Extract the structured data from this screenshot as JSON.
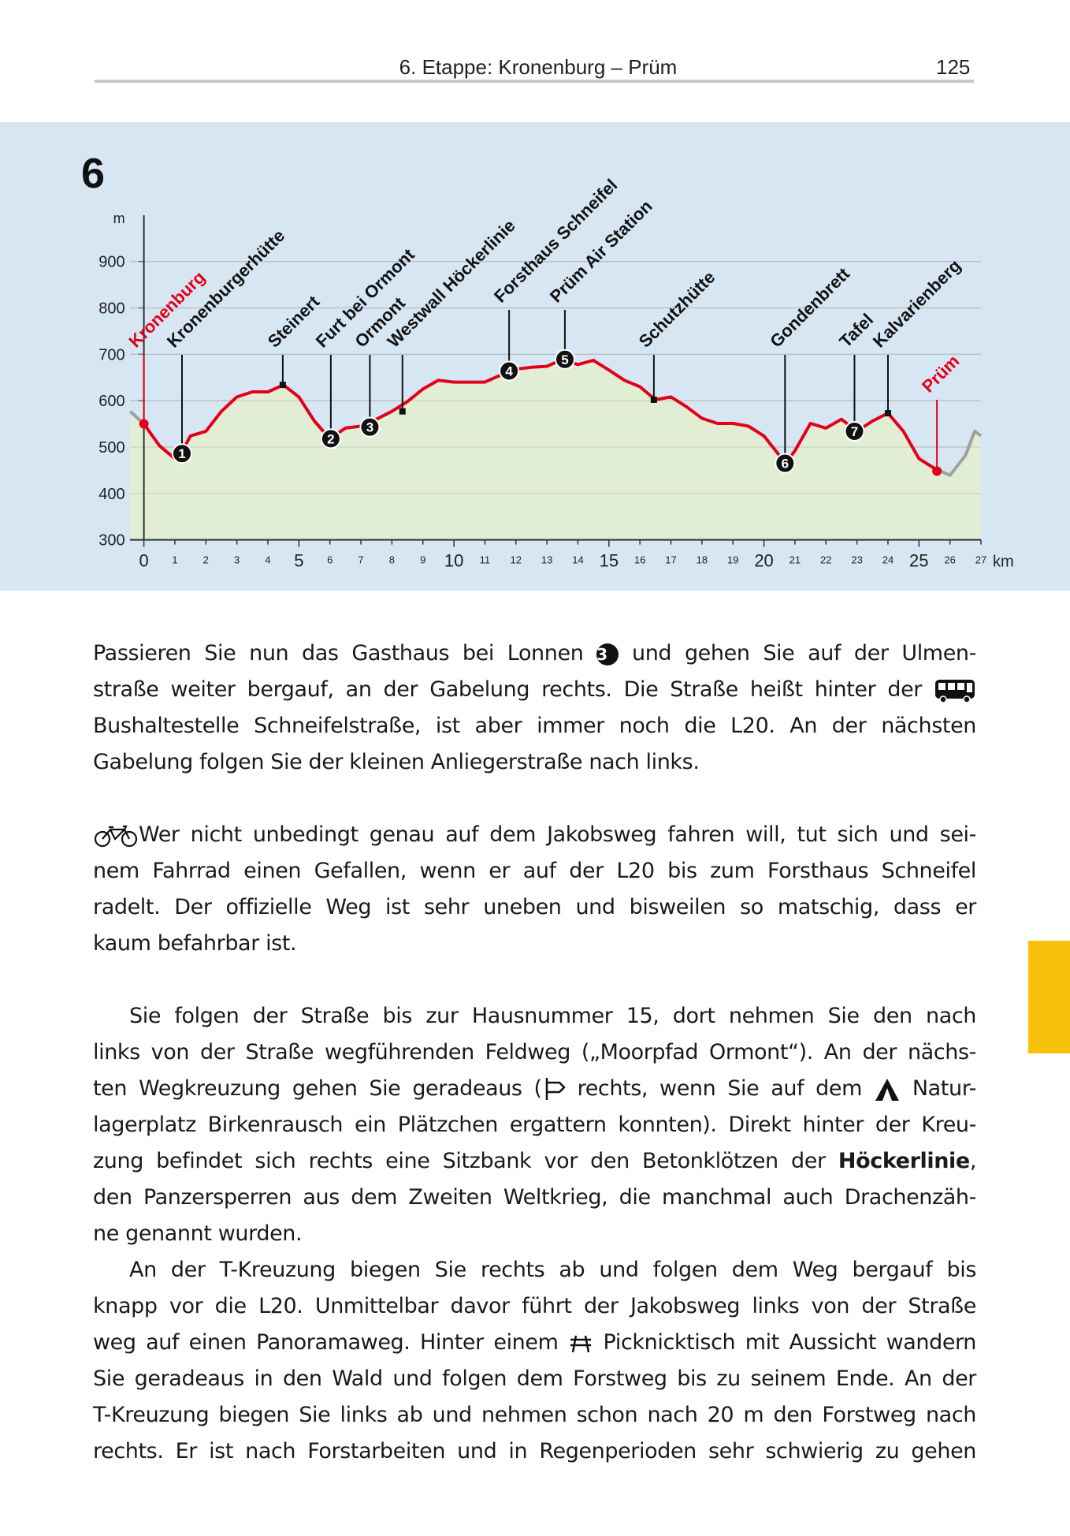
{
  "header": {
    "title": "6. Etappe: Kronenburg – Prüm",
    "page": "125"
  },
  "chart_data": {
    "type": "line",
    "title": "6",
    "y_label": "m",
    "x_label": "km",
    "xlim": [
      0,
      27
    ],
    "ylim": [
      300,
      900
    ],
    "xticks": [
      0,
      1,
      2,
      3,
      4,
      5,
      6,
      7,
      8,
      9,
      10,
      11,
      12,
      13,
      14,
      15,
      16,
      17,
      18,
      19,
      20,
      21,
      22,
      23,
      24,
      25,
      26,
      27
    ],
    "yticks": [
      300,
      400,
      500,
      600,
      700,
      800,
      900
    ],
    "grid": true,
    "fill": "#e2eed3",
    "x": [
      -0.44,
      0,
      0.5,
      1,
      1.2,
      1.5,
      2,
      2.5,
      3,
      3.5,
      4,
      4.5,
      5,
      5.5,
      6,
      6.5,
      7,
      7.2,
      7.5,
      8,
      8.5,
      9,
      9.5,
      10,
      11,
      11.5,
      12,
      12.5,
      13,
      13.5,
      14,
      14.5,
      15,
      15.5,
      16,
      16.5,
      17,
      17.5,
      18,
      18.5,
      19,
      19.5,
      20,
      20.5,
      20.7,
      21,
      21.5,
      22,
      22.5,
      23,
      23.5,
      24,
      24.5,
      25,
      25.5,
      25.7,
      26,
      26.5,
      26.8,
      27
    ],
    "series": [
      {
        "color": "#e2001a",
        "values": [
          null,
          550,
          503,
          475,
          486,
          524,
          534,
          577,
          608,
          619,
          619,
          634,
          608,
          556,
          518,
          541,
          545,
          543,
          560,
          577,
          598,
          625,
          644,
          640,
          640,
          655,
          668,
          672,
          674,
          689,
          678,
          687,
          666,
          644,
          630,
          602,
          608,
          587,
          562,
          551,
          551,
          545,
          524,
          482,
          465,
          492,
          551,
          541,
          560,
          534,
          556,
          573,
          534,
          475,
          454,
          448,
          null,
          null,
          null,
          null
        ]
      },
      {
        "color": "#a0a0a0",
        "values": [
          577,
          550,
          null,
          null,
          null,
          null,
          null,
          null,
          null,
          null,
          null,
          null,
          null,
          null,
          null,
          null,
          null,
          null,
          null,
          null,
          null,
          null,
          null,
          null,
          null,
          null,
          null,
          null,
          null,
          null,
          null,
          null,
          null,
          null,
          null,
          null,
          null,
          null,
          null,
          null,
          null,
          null,
          null,
          null,
          null,
          null,
          null,
          null,
          null,
          null,
          null,
          null,
          null,
          null,
          null,
          448,
          439,
          482,
          534,
          524
        ]
      }
    ],
    "waypoints": [
      {
        "label": "Kronenburg",
        "km": 0,
        "value": 550,
        "symbol": "dot",
        "color": "#e2001a"
      },
      {
        "label": "Kronenburgerhütte",
        "km": 1.23,
        "value": 486,
        "symbol": "circle",
        "marker": "1",
        "color": "#111111"
      },
      {
        "label": "Steinert",
        "km": 4.48,
        "value": 634,
        "symbol": "square",
        "color": "#111111"
      },
      {
        "label": "Furt bei Ormont",
        "km": 6.03,
        "value": 518,
        "symbol": "circle",
        "marker": "2",
        "color": "#111111"
      },
      {
        "label": "Ormont",
        "km": 7.29,
        "value": 543,
        "symbol": "circle",
        "marker": "3",
        "color": "#111111"
      },
      {
        "label": "Westwall Höckerlinie",
        "km": 8.34,
        "value": 577,
        "symbol": "square",
        "color": "#111111"
      },
      {
        "label": "Forsthaus Schneifel",
        "km": 11.78,
        "value": 664,
        "symbol": "circle",
        "marker": "4",
        "color": "#111111"
      },
      {
        "label": "Prüm Air Station",
        "km": 13.58,
        "value": 689,
        "symbol": "circle",
        "marker": "5",
        "color": "#111111"
      },
      {
        "label": "Schutzhütte",
        "km": 16.45,
        "value": 602,
        "symbol": "square",
        "color": "#111111"
      },
      {
        "label": "Gondenbrett",
        "km": 20.68,
        "value": 465,
        "symbol": "circle",
        "marker": "6",
        "color": "#111111"
      },
      {
        "label": "Tafel",
        "km": 22.92,
        "value": 534,
        "symbol": "circle",
        "marker": "7",
        "color": "#111111"
      },
      {
        "label": "Kalvarienberg",
        "km": 24.0,
        "value": 573,
        "symbol": "square",
        "color": "#111111"
      },
      {
        "label": "Prüm",
        "km": 25.58,
        "value": 448,
        "symbol": "dot",
        "color": "#e2001a"
      }
    ]
  },
  "text": {
    "paragraphs": [
      {
        "lines": [
          [
            "Passieren Sie nun das Gasthaus bei Lonnen ",
            "3",
            " und gehen Sie auf der Ulmen-"
          ],
          [
            "straße weiter bergauf, an der Gabelung rechts. Die Straße heißt hinter der "
          ],
          [
            "Bushaltestelle Schneifelstraße, ist aber immer noch die L20. An der nächsten"
          ],
          [
            "Gabelung folgen Sie der kleinen Anliegerstraße nach links."
          ]
        ]
      },
      {
        "lines": [
          [
            "Wer nicht unbedingt genau auf dem Jakobsweg fahren will, tut sich und sei-"
          ],
          [
            "nem Fahrrad einen Gefallen, wenn er auf der L20 bis zum Forsthaus Schneifel"
          ],
          [
            "radelt. Der offizielle Weg ist sehr uneben und bisweilen so matschig, dass er"
          ],
          [
            "kaum befahrbar ist."
          ]
        ]
      },
      {
        "lines": [
          [
            "Sie folgen der Straße bis zur Hausnummer 15, dort nehmen Sie den nach"
          ],
          [
            "links von der Straße wegführenden Feldweg („Moorpfad Ormont“). An der nächs-"
          ],
          [
            "ten Wegkreuzung gehen Sie geradeaus (",
            " rechts, wenn Sie auf dem ",
            " Natur-"
          ],
          [
            "lagerplatz Birkenrausch ein Plätzchen ergattern konnten). Direkt hinter der Kreu-"
          ],
          [
            "zung befindet sich rechts eine Sitzbank vor den Betonklötzen der ",
            "Höckerlinie",
            ","
          ],
          [
            "den Panzersperren aus dem Zweiten Weltkrieg, die manchmal auch Drachenzäh-"
          ],
          [
            "ne genannt wurden."
          ]
        ]
      },
      {
        "lines": [
          [
            "An der T-Kreuzung biegen Sie rechts ab und folgen dem Weg bergauf bis"
          ],
          [
            "knapp vor die L20. Unmittelbar davor führt der Jakobsweg links von der Straße"
          ],
          [
            "weg auf einen Panoramaweg. Hinter einem ",
            " Picknicktisch mit Aussicht wandern"
          ],
          [
            "Sie geradeaus in den Wald und folgen dem Forstweg bis zu seinem Ende. An der"
          ],
          [
            "T-Kreuzung biegen Sie links ab und nehmen schon nach 20 m den Forstweg nach"
          ],
          [
            "rechts. Er ist nach Forstarbeiten und in Regenperioden sehr schwierig zu gehen"
          ]
        ]
      }
    ]
  }
}
